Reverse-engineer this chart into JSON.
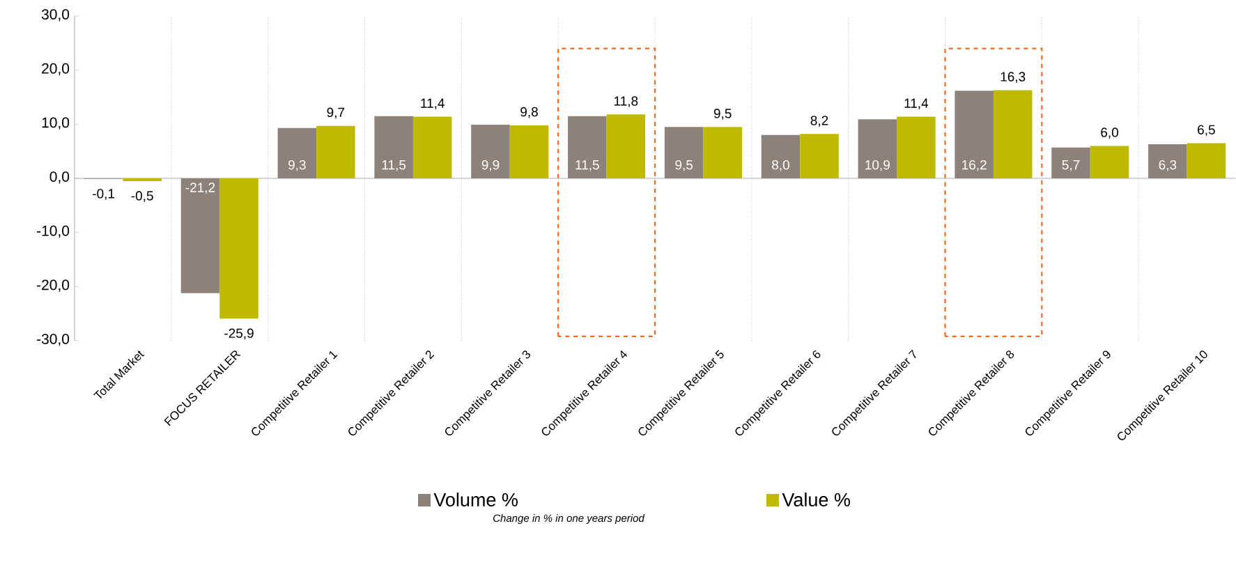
{
  "chart_data": {
    "type": "bar",
    "categories": [
      "Total Market",
      "FOCUS RETAILER",
      "Competitive Retailer 1",
      "Competitive Retailer 2",
      "Competitive Retailer 3",
      "Competitive Retailer 4",
      "Competitive Retailer 5",
      "Competitive Retailer 6",
      "Competitive Retailer 7",
      "Competitive Retailer 8",
      "Competitive Retailer 9",
      "Competitive Retailer 10"
    ],
    "series": [
      {
        "name": "Volume %",
        "color": "#8c827a",
        "values": [
          -0.1,
          -21.2,
          9.3,
          11.5,
          9.9,
          11.5,
          9.5,
          8.0,
          10.9,
          16.2,
          5.7,
          6.3
        ],
        "value_labels": [
          "-0,1",
          "-21,2",
          "9,3",
          "11,5",
          "9,9",
          "11,5",
          "9,5",
          "8,0",
          "10,9",
          "16,2",
          "5,7",
          "6,3"
        ]
      },
      {
        "name": "Value %",
        "color": "#bfba00",
        "values": [
          -0.5,
          -25.9,
          9.7,
          11.4,
          9.8,
          11.8,
          9.5,
          8.2,
          11.4,
          16.3,
          6.0,
          6.5
        ],
        "value_labels": [
          "-0,5",
          "-25,9",
          "9,7",
          "11,4",
          "9,8",
          "11,8",
          "9,5",
          "8,2",
          "11,4",
          "16,3",
          "6,0",
          "6,5"
        ]
      }
    ],
    "ylim": [
      -30,
      30
    ],
    "yticks": [
      {
        "value": -30,
        "label": "-30,0"
      },
      {
        "value": -20,
        "label": "-20,0"
      },
      {
        "value": -10,
        "label": "-10,0"
      },
      {
        "value": 0,
        "label": "0,0"
      },
      {
        "value": 10,
        "label": "10,0"
      },
      {
        "value": 20,
        "label": "20,0"
      },
      {
        "value": 30,
        "label": "30,0"
      }
    ],
    "grid": true,
    "legend": "bottom",
    "annotations": [
      "Change in % in one years period"
    ]
  }
}
